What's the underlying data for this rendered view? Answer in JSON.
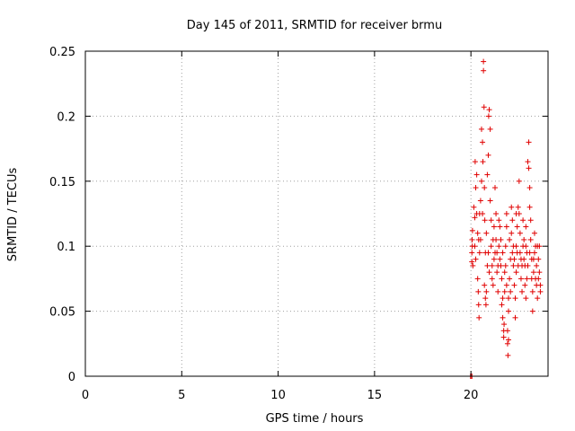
{
  "chart_data": {
    "type": "scatter",
    "title": "Day 145 of 2011, SRMTID for receiver brmu",
    "xlabel": "GPS time / hours",
    "ylabel": "SRMTID / TECUs",
    "xlim": [
      0,
      24
    ],
    "ylim": [
      0,
      0.25
    ],
    "xticks": [
      0,
      5,
      10,
      15,
      20
    ],
    "xtick_labels": [
      "0",
      "5",
      "10",
      "15",
      "20"
    ],
    "yticks": [
      0,
      0.05,
      0.1,
      0.15,
      0.2,
      0.25
    ],
    "ytick_labels": [
      "0",
      "0.05",
      "0.1",
      "0.15",
      "0.2",
      "0.25"
    ],
    "grid": true,
    "marker": "+",
    "color": "#e00000",
    "series": [
      {
        "points": [
          [
            20.0,
            0.0
          ],
          [
            20.05,
            0.0
          ],
          [
            19.98,
            0.0
          ],
          [
            20.05,
            0.088
          ],
          [
            20.05,
            0.095
          ],
          [
            20.07,
            0.1
          ],
          [
            20.06,
            0.105
          ],
          [
            20.08,
            0.112
          ],
          [
            20.1,
            0.085
          ],
          [
            20.15,
            0.13
          ],
          [
            20.2,
            0.122
          ],
          [
            20.22,
            0.165
          ],
          [
            20.25,
            0.145
          ],
          [
            20.3,
            0.155
          ],
          [
            20.3,
            0.125
          ],
          [
            20.35,
            0.11
          ],
          [
            20.35,
            0.075
          ],
          [
            20.38,
            0.065
          ],
          [
            20.4,
            0.055
          ],
          [
            20.42,
            0.045
          ],
          [
            20.45,
            0.095
          ],
          [
            20.5,
            0.105
          ],
          [
            20.5,
            0.135
          ],
          [
            20.55,
            0.15
          ],
          [
            20.55,
            0.19
          ],
          [
            20.6,
            0.18
          ],
          [
            20.62,
            0.165
          ],
          [
            20.65,
            0.242
          ],
          [
            20.65,
            0.235
          ],
          [
            20.68,
            0.207
          ],
          [
            20.7,
            0.145
          ],
          [
            20.72,
            0.12
          ],
          [
            20.75,
            0.095
          ],
          [
            20.75,
            0.06
          ],
          [
            20.78,
            0.055
          ],
          [
            20.8,
            0.065
          ],
          [
            20.85,
            0.085
          ],
          [
            20.85,
            0.155
          ],
          [
            20.9,
            0.17
          ],
          [
            20.92,
            0.2
          ],
          [
            20.95,
            0.205
          ],
          [
            21.0,
            0.19
          ],
          [
            21.0,
            0.135
          ],
          [
            21.05,
            0.12
          ],
          [
            21.05,
            0.1
          ],
          [
            21.1,
            0.085
          ],
          [
            21.1,
            0.075
          ],
          [
            21.15,
            0.07
          ],
          [
            21.2,
            0.09
          ],
          [
            21.2,
            0.115
          ],
          [
            21.25,
            0.145
          ],
          [
            21.3,
            0.125
          ],
          [
            21.3,
            0.105
          ],
          [
            21.35,
            0.095
          ],
          [
            21.35,
            0.08
          ],
          [
            21.4,
            0.065
          ],
          [
            21.45,
            0.1
          ],
          [
            21.5,
            0.115
          ],
          [
            21.5,
            0.09
          ],
          [
            21.55,
            0.085
          ],
          [
            21.6,
            0.075
          ],
          [
            21.6,
            0.055
          ],
          [
            21.65,
            0.045
          ],
          [
            21.7,
            0.035
          ],
          [
            21.7,
            0.03
          ],
          [
            21.72,
            0.04
          ],
          [
            21.75,
            0.065
          ],
          [
            21.8,
            0.085
          ],
          [
            21.8,
            0.1
          ],
          [
            21.85,
            0.115
          ],
          [
            21.85,
            0.125
          ],
          [
            21.9,
            0.035
          ],
          [
            21.9,
            0.025
          ],
          [
            21.95,
            0.028
          ],
          [
            21.92,
            0.016
          ],
          [
            21.95,
            0.05
          ],
          [
            22.0,
            0.075
          ],
          [
            22.05,
            0.09
          ],
          [
            22.1,
            0.11
          ],
          [
            22.1,
            0.13
          ],
          [
            22.15,
            0.12
          ],
          [
            22.2,
            0.1
          ],
          [
            22.2,
            0.085
          ],
          [
            22.25,
            0.07
          ],
          [
            22.3,
            0.06
          ],
          [
            22.3,
            0.045
          ],
          [
            22.35,
            0.08
          ],
          [
            22.4,
            0.095
          ],
          [
            22.4,
            0.115
          ],
          [
            22.45,
            0.13
          ],
          [
            22.5,
            0.125
          ],
          [
            22.5,
            0.15
          ],
          [
            22.55,
            0.11
          ],
          [
            22.6,
            0.09
          ],
          [
            22.6,
            0.075
          ],
          [
            22.65,
            0.065
          ],
          [
            22.7,
            0.1
          ],
          [
            22.7,
            0.12
          ],
          [
            22.75,
            0.105
          ],
          [
            22.8,
            0.085
          ],
          [
            22.8,
            0.07
          ],
          [
            22.85,
            0.06
          ],
          [
            22.9,
            0.075
          ],
          [
            22.9,
            0.095
          ],
          [
            22.95,
            0.165
          ],
          [
            23.0,
            0.16
          ],
          [
            23.0,
            0.18
          ],
          [
            23.05,
            0.145
          ],
          [
            23.05,
            0.13
          ],
          [
            23.1,
            0.12
          ],
          [
            23.1,
            0.105
          ],
          [
            23.15,
            0.09
          ],
          [
            23.15,
            0.075
          ],
          [
            23.2,
            0.065
          ],
          [
            23.2,
            0.05
          ],
          [
            23.25,
            0.08
          ],
          [
            23.3,
            0.095
          ],
          [
            23.3,
            0.11
          ],
          [
            23.35,
            0.1
          ],
          [
            23.4,
            0.085
          ],
          [
            23.4,
            0.07
          ],
          [
            23.45,
            0.06
          ],
          [
            23.5,
            0.075
          ],
          [
            23.5,
            0.09
          ],
          [
            23.55,
            0.1
          ],
          [
            23.55,
            0.08
          ],
          [
            23.6,
            0.07
          ],
          [
            23.6,
            0.065
          ],
          [
            20.25,
            0.09
          ],
          [
            20.4,
            0.105
          ],
          [
            20.6,
            0.125
          ],
          [
            20.8,
            0.11
          ],
          [
            20.9,
            0.095
          ],
          [
            21.15,
            0.105
          ],
          [
            21.25,
            0.095
          ],
          [
            21.4,
            0.085
          ],
          [
            21.55,
            0.105
          ],
          [
            21.65,
            0.095
          ],
          [
            21.75,
            0.08
          ],
          [
            21.85,
            0.07
          ],
          [
            22.0,
            0.105
          ],
          [
            22.15,
            0.095
          ],
          [
            22.25,
            0.09
          ],
          [
            22.35,
            0.1
          ],
          [
            22.45,
            0.085
          ],
          [
            22.55,
            0.095
          ],
          [
            22.65,
            0.085
          ],
          [
            22.75,
            0.09
          ],
          [
            22.85,
            0.1
          ],
          [
            22.95,
            0.085
          ],
          [
            23.05,
            0.095
          ],
          [
            23.25,
            0.09
          ],
          [
            23.45,
            0.1
          ],
          [
            20.45,
            0.125
          ],
          [
            20.7,
            0.07
          ],
          [
            21.45,
            0.12
          ],
          [
            22.05,
            0.065
          ],
          [
            22.35,
            0.125
          ],
          [
            22.85,
            0.115
          ],
          [
            23.35,
            0.075
          ],
          [
            21.95,
            0.06
          ],
          [
            21.65,
            0.06
          ],
          [
            20.95,
            0.08
          ],
          [
            20.2,
            0.1
          ]
        ]
      }
    ]
  }
}
